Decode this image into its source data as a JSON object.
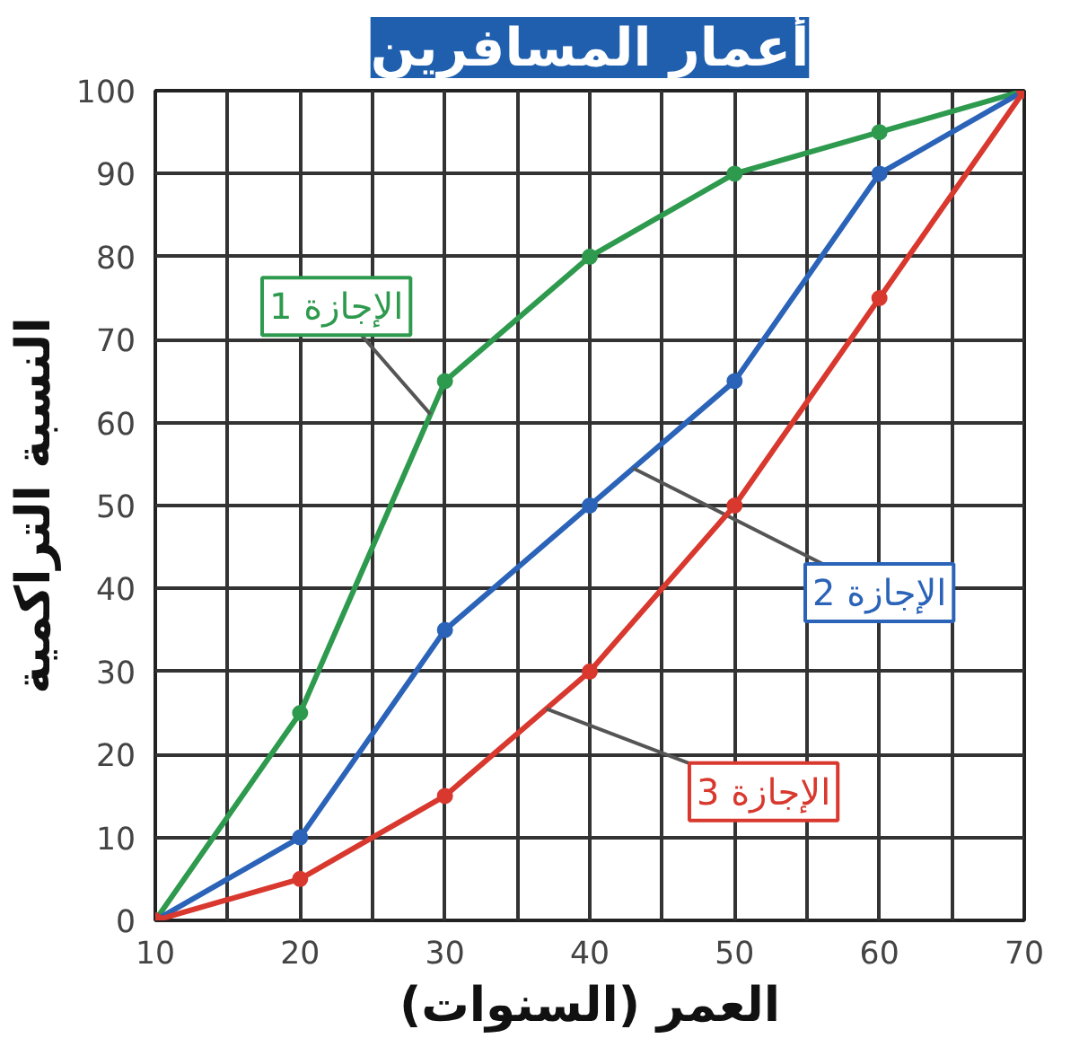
{
  "chart_data": {
    "type": "line",
    "title": "أعمار المسافرين",
    "xlabel": "العمر (السنوات)",
    "ylabel": "النسبة التراكمية",
    "x": [
      10,
      20,
      30,
      40,
      50,
      60,
      70
    ],
    "series": [
      {
        "name": "الإجازة 1",
        "color": "#2e9a4e",
        "values": [
          0,
          25,
          65,
          80,
          90,
          95,
          100
        ]
      },
      {
        "name": "الإجازة 2",
        "color": "#2a63b8",
        "values": [
          0,
          10,
          35,
          50,
          65,
          90,
          100
        ]
      },
      {
        "name": "الإجازة 3",
        "color": "#d8382e",
        "values": [
          0,
          5,
          15,
          30,
          50,
          75,
          100
        ]
      }
    ],
    "xlim": [
      10,
      70
    ],
    "ylim": [
      0,
      100
    ],
    "xticks": [
      10,
      {
        "value": 15,
        "label": null
      },
      20,
      {
        "value": 25,
        "label": null
      },
      30,
      {
        "value": 35,
        "label": null
      },
      40,
      {
        "value": 45,
        "label": null
      },
      50,
      {
        "value": 55,
        "label": null
      },
      60,
      {
        "value": 65,
        "label": null
      },
      70
    ],
    "yticks": [
      0,
      10,
      20,
      30,
      40,
      50,
      60,
      70,
      80,
      90,
      100
    ],
    "grid": true,
    "legend": false,
    "marker": "circle",
    "line_style": "solid"
  }
}
